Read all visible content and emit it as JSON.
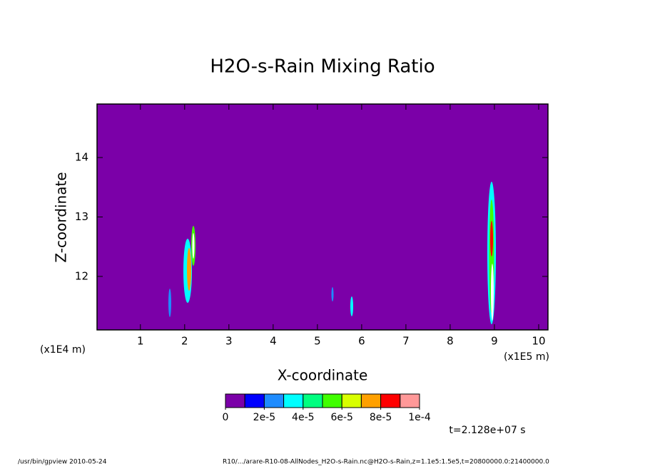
{
  "chart_data": {
    "type": "contour",
    "title": "H2O-s-Rain Mixing Ratio",
    "x_label": "X-coordinate",
    "y_label": "Z-coordinate",
    "x_unit": "(x1E5 m)",
    "y_unit": "(x1E4 m)",
    "xlim": [
      0.02,
      10.21
    ],
    "xticks": [
      1,
      2,
      3,
      4,
      5,
      6,
      7,
      8,
      9,
      10
    ],
    "ylim": [
      11.1,
      14.9
    ],
    "yticks": [
      12,
      13,
      14
    ],
    "background": "#7b00a8",
    "colorbar": {
      "clim": [
        0,
        0.0001
      ],
      "colors": [
        "#7b00a8",
        "#0000ff",
        "#1e8cff",
        "#00ffff",
        "#00ff80",
        "#40ff00",
        "#d8ff00",
        "#ffa000",
        "#ff0000",
        "#ff9898"
      ],
      "ticks": [
        0,
        {
          "value": 2e-05,
          "label": "2e-5"
        },
        {
          "value": 4e-05,
          "label": "4e-5"
        },
        {
          "value": 6e-05,
          "label": "6e-5"
        },
        {
          "value": 8e-05,
          "label": "8e-5"
        },
        {
          "value": 0.0001,
          "label": "1e-4"
        }
      ]
    },
    "time_label": "t=2.128e+07 s",
    "footer_left": "/usr/bin/gpview  2010-05-24",
    "footer_right": "R10/.../arare-R10-08-AllNodes_H2O-s-Rain.nc@H2O-s-Rain,z=1.1e5:1.5e5,t=20800000.0:21400000.0"
  }
}
